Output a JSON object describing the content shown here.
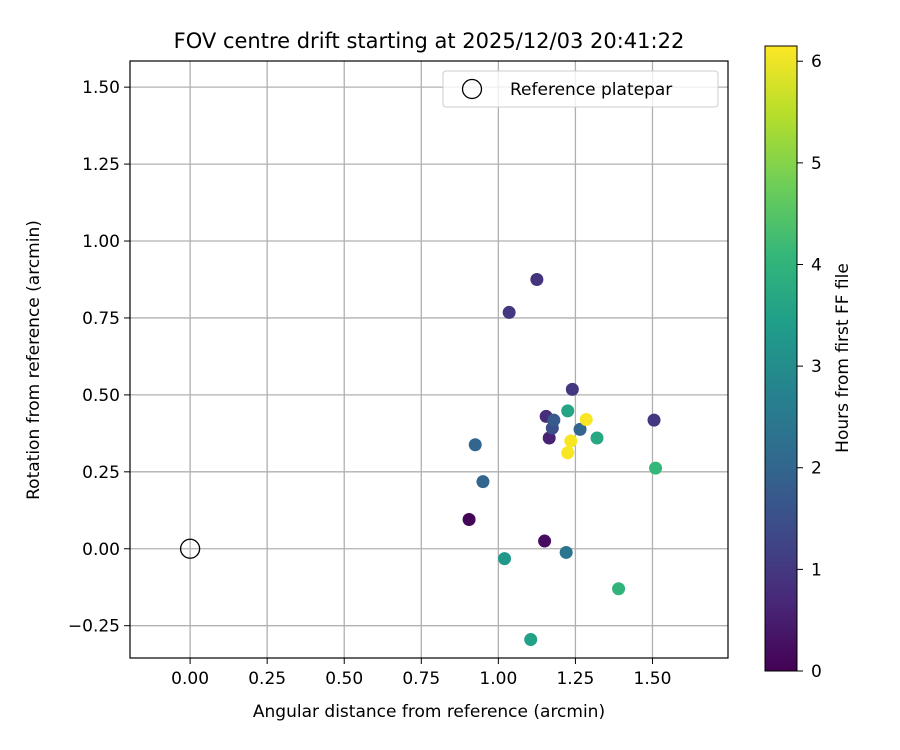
{
  "chart_data": {
    "type": "scatter",
    "title": "FOV centre drift starting at 2025/12/03 20:41:22",
    "xlabel": "Angular distance from reference (arcmin)",
    "ylabel": "Rotation from reference (arcmin)",
    "xlim": [
      -0.195,
      1.745
    ],
    "ylim": [
      -0.355,
      1.585
    ],
    "xticks": [
      0.0,
      0.25,
      0.5,
      0.75,
      1.0,
      1.25,
      1.5
    ],
    "xtick_labels": [
      "0.00",
      "0.25",
      "0.50",
      "0.75",
      "1.00",
      "1.25",
      "1.50"
    ],
    "yticks": [
      -0.25,
      0.0,
      0.25,
      0.5,
      0.75,
      1.0,
      1.25,
      1.5
    ],
    "ytick_labels": [
      "−0.25",
      "0.00",
      "0.25",
      "0.50",
      "0.75",
      "1.00",
      "1.25",
      "1.50"
    ],
    "grid": true,
    "legend": {
      "position": "top-right",
      "label": "Reference platepar"
    },
    "reference_point": {
      "x": 0.0,
      "y": 0.0
    },
    "colorbar": {
      "label": "Hours from first FF file",
      "min": 0,
      "max": 6.15,
      "ticks": [
        0,
        1,
        2,
        3,
        4,
        5,
        6
      ],
      "tick_labels": [
        "0",
        "1",
        "2",
        "3",
        "4",
        "5",
        "6"
      ],
      "colormap": "viridis"
    },
    "points": [
      {
        "x": 0.905,
        "y": 0.095,
        "hours": 0.05
      },
      {
        "x": 1.15,
        "y": 0.025,
        "hours": 0.2
      },
      {
        "x": 1.165,
        "y": 0.36,
        "hours": 0.6
      },
      {
        "x": 1.155,
        "y": 0.43,
        "hours": 0.8
      },
      {
        "x": 1.125,
        "y": 0.875,
        "hours": 0.9
      },
      {
        "x": 1.035,
        "y": 0.768,
        "hours": 1.0
      },
      {
        "x": 1.24,
        "y": 0.518,
        "hours": 1.0
      },
      {
        "x": 1.505,
        "y": 0.418,
        "hours": 1.0
      },
      {
        "x": 1.175,
        "y": 0.392,
        "hours": 1.5
      },
      {
        "x": 1.18,
        "y": 0.418,
        "hours": 1.7
      },
      {
        "x": 1.265,
        "y": 0.388,
        "hours": 2.0
      },
      {
        "x": 0.925,
        "y": 0.338,
        "hours": 2.0
      },
      {
        "x": 0.95,
        "y": 0.218,
        "hours": 2.0
      },
      {
        "x": 1.22,
        "y": -0.012,
        "hours": 2.4
      },
      {
        "x": 1.02,
        "y": -0.032,
        "hours": 3.3
      },
      {
        "x": 1.105,
        "y": -0.295,
        "hours": 3.5
      },
      {
        "x": 1.225,
        "y": 0.448,
        "hours": 3.6
      },
      {
        "x": 1.32,
        "y": 0.36,
        "hours": 3.7
      },
      {
        "x": 1.39,
        "y": -0.13,
        "hours": 4.0
      },
      {
        "x": 1.51,
        "y": 0.262,
        "hours": 4.1
      },
      {
        "x": 1.285,
        "y": 0.42,
        "hours": 6.1
      },
      {
        "x": 1.235,
        "y": 0.35,
        "hours": 6.1
      },
      {
        "x": 1.225,
        "y": 0.312,
        "hours": 6.1
      }
    ]
  }
}
